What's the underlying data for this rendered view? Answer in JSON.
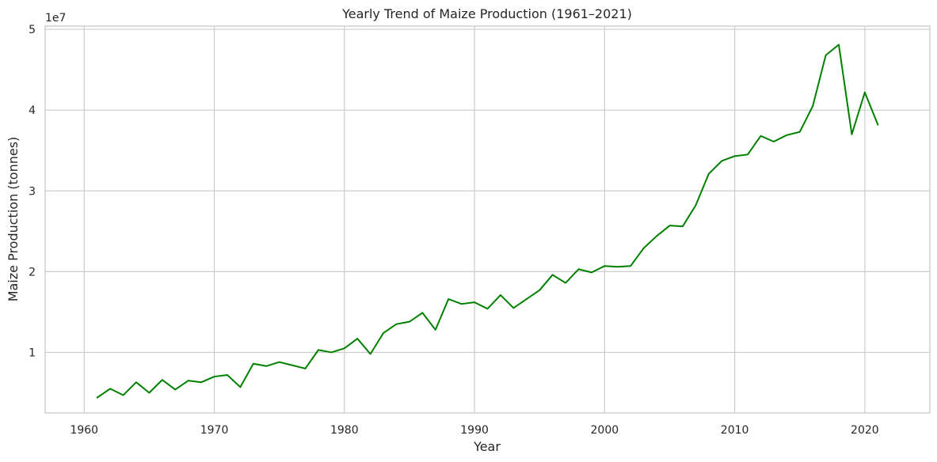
{
  "chart_data": {
    "type": "line",
    "title": "Yearly Trend of Maize Production (1961–2021)",
    "xlabel": "Year",
    "ylabel": "Maize Production (tonnes)",
    "y_offset_text": "1e7",
    "xlim": [
      1957,
      2025
    ],
    "ylim": [
      2500000,
      50400000
    ],
    "x_ticks": [
      1960,
      1970,
      1980,
      1990,
      2000,
      2010,
      2020
    ],
    "x_tick_labels": [
      "1960",
      "1970",
      "1980",
      "1990",
      "2000",
      "2010",
      "2020"
    ],
    "y_ticks": [
      10000000,
      20000000,
      30000000,
      40000000,
      50000000
    ],
    "y_tick_labels": [
      "1",
      "2",
      "3",
      "4",
      "5"
    ],
    "grid": true,
    "series": [
      {
        "color": "#008000",
        "x": [
          1961,
          1962,
          1963,
          1964,
          1965,
          1966,
          1967,
          1968,
          1969,
          1970,
          1971,
          1972,
          1973,
          1974,
          1975,
          1976,
          1977,
          1978,
          1979,
          1980,
          1981,
          1982,
          1983,
          1984,
          1985,
          1986,
          1987,
          1988,
          1989,
          1990,
          1991,
          1992,
          1993,
          1994,
          1995,
          1996,
          1997,
          1998,
          1999,
          2000,
          2001,
          2002,
          2003,
          2004,
          2005,
          2006,
          2007,
          2008,
          2009,
          2010,
          2011,
          2012,
          2013,
          2014,
          2015,
          2016,
          2017,
          2018,
          2019,
          2020,
          2021
        ],
        "values": [
          4400000,
          5500000,
          4700000,
          6300000,
          5000000,
          6600000,
          5400000,
          6500000,
          6300000,
          7000000,
          7200000,
          5700000,
          8600000,
          8300000,
          8800000,
          8400000,
          8000000,
          10300000,
          10000000,
          10500000,
          11700000,
          9800000,
          12400000,
          13500000,
          13800000,
          14900000,
          12800000,
          16600000,
          16000000,
          16200000,
          15400000,
          17100000,
          15500000,
          16600000,
          17700000,
          19600000,
          18600000,
          20300000,
          19900000,
          20700000,
          20600000,
          20700000,
          22900000,
          24400000,
          25700000,
          25600000,
          28200000,
          32100000,
          33700000,
          34300000,
          34500000,
          36800000,
          36100000,
          36900000,
          37300000,
          40500000,
          46800000,
          48100000,
          37000000,
          42200000,
          38200000
        ]
      }
    ]
  }
}
